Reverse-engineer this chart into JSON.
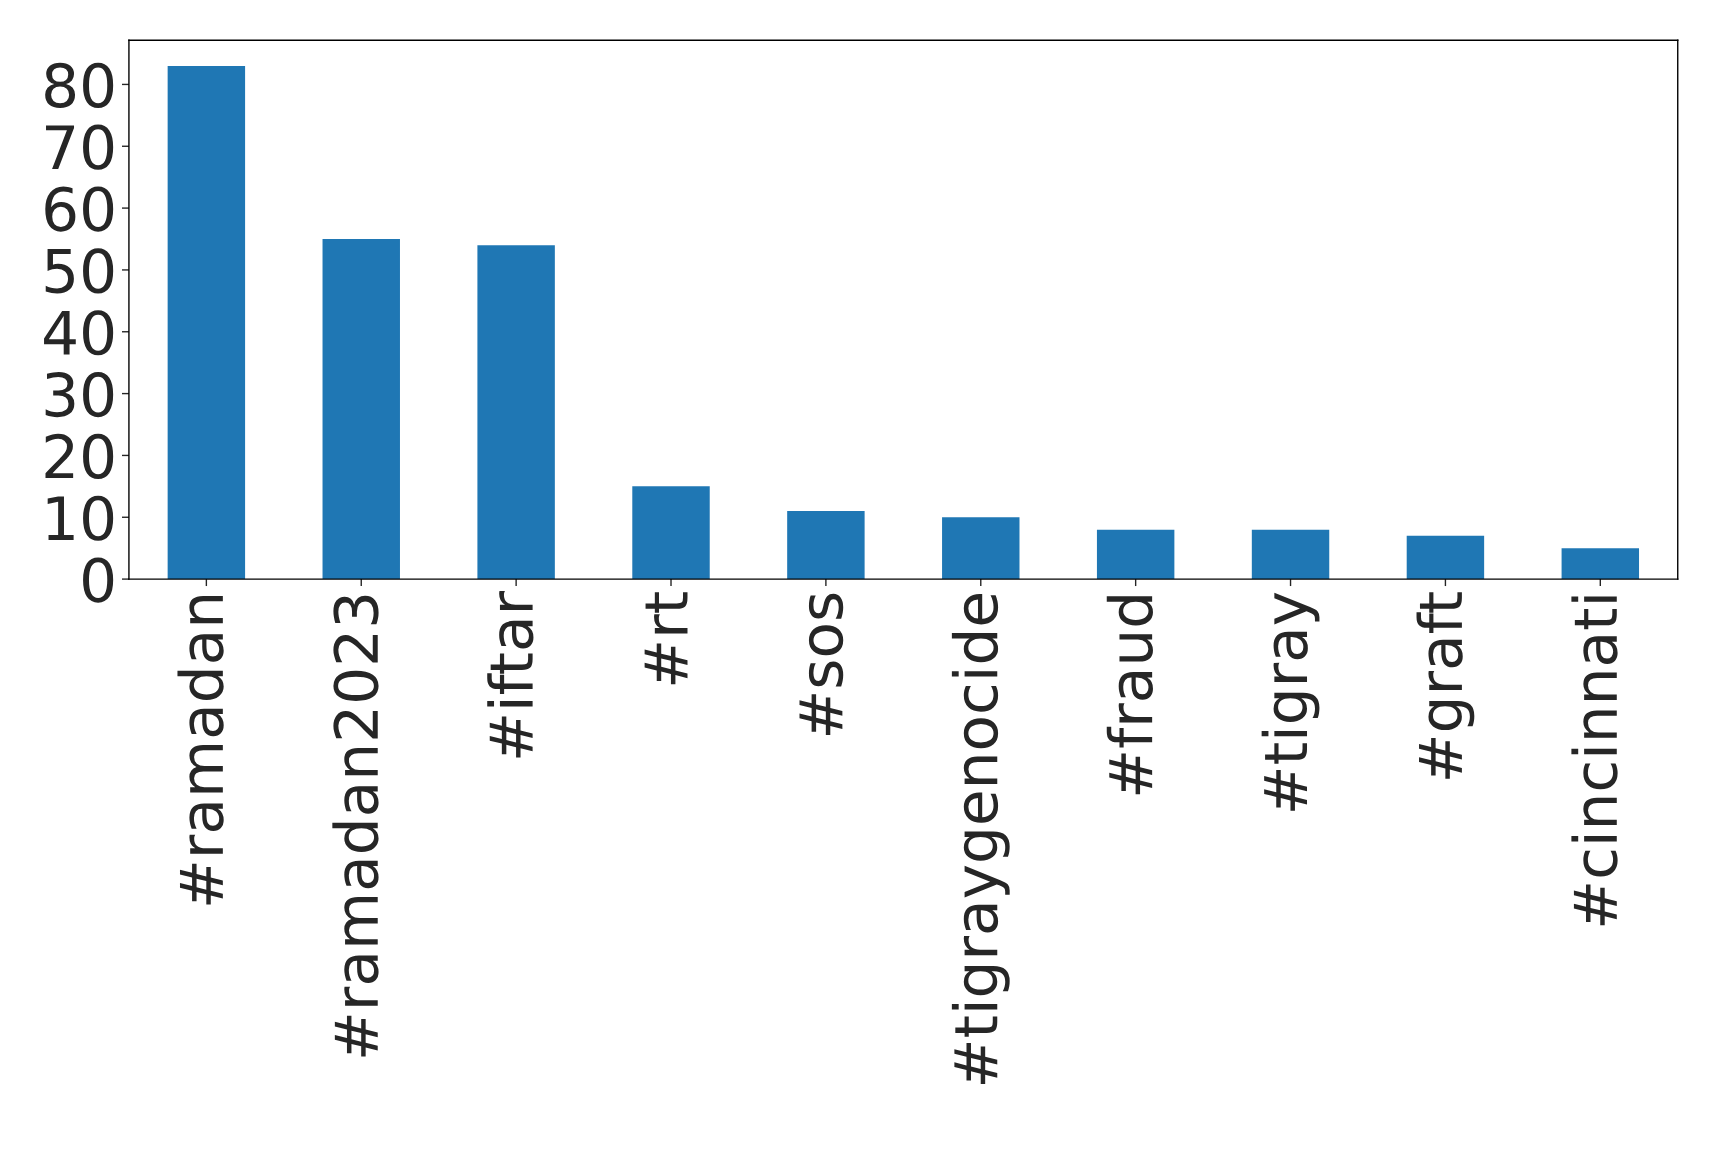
{
  "chart_data": {
    "type": "bar",
    "categories": [
      "#ramadan",
      "#ramadan2023",
      "#iftar",
      "#rt",
      "#sos",
      "#tigraygenocide",
      "#fraud",
      "#tigray",
      "#graft",
      "#cincinnati"
    ],
    "values": [
      83,
      55,
      54,
      15,
      11,
      10,
      8,
      8,
      7,
      5
    ],
    "color": "#1f77b4",
    "ylim": [
      0,
      87.15
    ],
    "yticks": [
      0,
      10,
      20,
      30,
      40,
      50,
      60,
      70,
      80
    ],
    "grid": false,
    "legend": false
  }
}
